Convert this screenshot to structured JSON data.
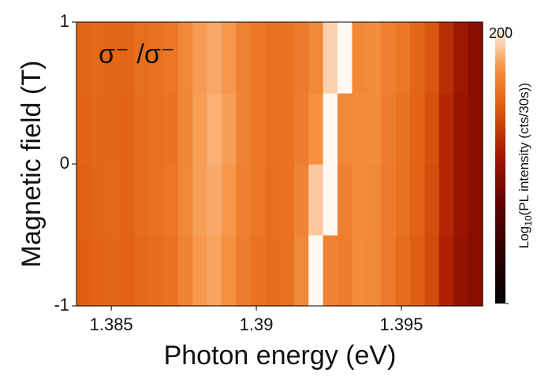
{
  "chart_data": {
    "type": "heatmap",
    "annotation": "σ⁻ /σ⁻",
    "xlabel": "Photon energy (eV)",
    "ylabel": "Magnetic field (T)",
    "colorbar_label": {
      "prefix": "Log",
      "sub": "10",
      "suffix": "(PL intensity (cts/30s))"
    },
    "xlim": [
      1.3838,
      1.3978
    ],
    "xticks": [
      1.385,
      1.39,
      1.395
    ],
    "ylim": [
      -1,
      1
    ],
    "yticks": [
      -1,
      0,
      1
    ],
    "zlim": [
      1,
      200
    ],
    "zticks": [
      1,
      200
    ],
    "zscale": "log",
    "x_bins": [
      1.3838,
      1.3843,
      1.3848,
      1.3853,
      1.3858,
      1.3863,
      1.3868,
      1.3873,
      1.3878,
      1.3883,
      1.3888,
      1.3893,
      1.3898,
      1.3903,
      1.3908,
      1.3913,
      1.3918,
      1.3923,
      1.3928,
      1.3933,
      1.3938,
      1.3943,
      1.3948,
      1.3953,
      1.3958,
      1.3963,
      1.3968,
      1.3973,
      1.3978
    ],
    "y_bins": [
      -1,
      -0.5,
      0,
      0.5,
      1
    ],
    "z": [
      [
        45,
        48,
        50,
        47,
        52,
        55,
        60,
        75,
        95,
        105,
        90,
        70,
        60,
        55,
        58,
        80,
        200,
        75,
        70,
        85,
        80,
        65,
        55,
        45,
        35,
        20,
        14,
        12
      ],
      [
        46,
        50,
        52,
        48,
        55,
        58,
        62,
        80,
        100,
        110,
        95,
        72,
        62,
        56,
        60,
        75,
        140,
        200,
        72,
        85,
        82,
        68,
        58,
        47,
        36,
        22,
        15,
        12
      ],
      [
        48,
        50,
        50,
        48,
        55,
        58,
        60,
        78,
        100,
        115,
        100,
        75,
        62,
        58,
        60,
        70,
        90,
        200,
        80,
        85,
        85,
        70,
        60,
        48,
        38,
        22,
        15,
        12
      ],
      [
        50,
        52,
        50,
        50,
        56,
        58,
        62,
        80,
        98,
        108,
        95,
        74,
        62,
        58,
        60,
        68,
        80,
        150,
        200,
        80,
        85,
        72,
        62,
        50,
        40,
        24,
        16,
        12
      ]
    ]
  }
}
